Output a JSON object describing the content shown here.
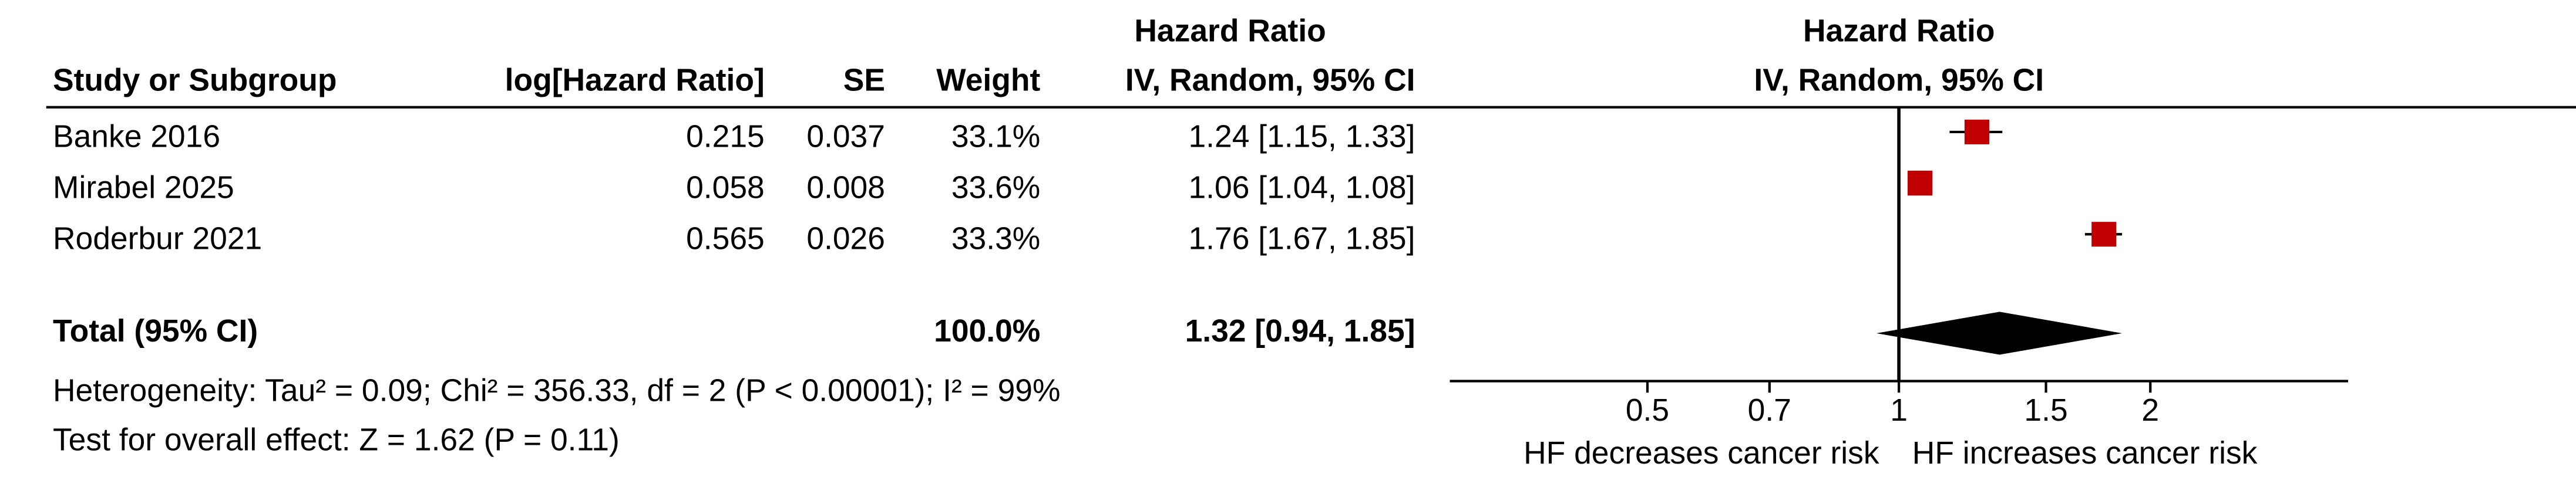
{
  "chart_data": {
    "type": "forest",
    "col_study": "Study or Subgroup",
    "col_log_hr": "log[Hazard Ratio]",
    "col_se": "SE",
    "col_weight": "Weight",
    "col_effect_title": "Hazard Ratio",
    "col_effect_method": "IV, Random, 95% CI",
    "plot_title": "Hazard Ratio",
    "plot_method": "IV, Random, 95% CI",
    "studies": [
      "Banke 2016",
      "Mirabel 2025",
      "Roderbur 2021"
    ],
    "log_hr": [
      0.215,
      0.058,
      0.565
    ],
    "se": [
      0.037,
      0.008,
      0.026
    ],
    "weights": [
      33.1,
      33.6,
      33.3
    ],
    "weight_labels": [
      "33.1%",
      "33.6%",
      "33.3%"
    ],
    "values": [
      1.24,
      1.06,
      1.76
    ],
    "lower": [
      1.15,
      1.04,
      1.67
    ],
    "upper": [
      1.33,
      1.08,
      1.85
    ],
    "value_labels": [
      "1.24 [1.15, 1.33]",
      "1.06 [1.04, 1.08]",
      "1.76 [1.67, 1.85]"
    ],
    "total": {
      "label": "Total (95% CI)",
      "weight": 100.0,
      "weight_label": "100.0%",
      "value": 1.32,
      "lower": 0.94,
      "upper": 1.85,
      "value_label": "1.32 [0.94, 1.85]"
    },
    "heterogeneity": "Heterogeneity: Tau² = 0.09; Chi² = 356.33, df = 2 (P < 0.00001); I² = 99%",
    "overall_effect": "Test for overall effect: Z = 1.62 (P = 0.11)",
    "xlim": [
      0.29,
      3.45
    ],
    "xticks": [
      0.5,
      0.7,
      1,
      1.5,
      2
    ],
    "log_scale": true,
    "xlabel_left": "HF decreases cancer risk",
    "xlabel_right": "HF increases cancer risk",
    "color": "#c00000"
  }
}
